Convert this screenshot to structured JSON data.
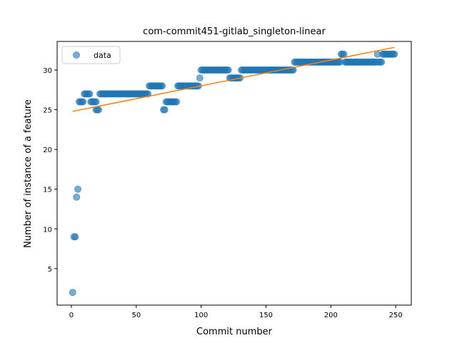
{
  "chart_data": {
    "type": "scatter",
    "title": "com-commit451-gitlab_singleton-linear",
    "xlabel": "Commit number",
    "ylabel": "Number of instance of a feature",
    "xlim": [
      -11,
      262
    ],
    "ylim": [
      0.4,
      33.6
    ],
    "xticks": [
      0,
      50,
      100,
      150,
      200,
      250
    ],
    "yticks": [
      5,
      10,
      15,
      20,
      25,
      30
    ],
    "legend": {
      "position": "top-left",
      "entries": [
        "data"
      ]
    },
    "series": [
      {
        "name": "data",
        "kind": "points",
        "color": "#1f77b4",
        "runs": [
          [
            1,
            1,
            2
          ],
          [
            2,
            3,
            9
          ],
          [
            4,
            4,
            14
          ],
          [
            5,
            5,
            15
          ],
          [
            6,
            9,
            26
          ],
          [
            10,
            14,
            27
          ],
          [
            15,
            19,
            26
          ],
          [
            19,
            21,
            25
          ],
          [
            22,
            59,
            27
          ],
          [
            60,
            70,
            28
          ],
          [
            71,
            72,
            25
          ],
          [
            73,
            81,
            26
          ],
          [
            82,
            98,
            28
          ],
          [
            99,
            99,
            29
          ],
          [
            100,
            121,
            30
          ],
          [
            122,
            130,
            29
          ],
          [
            131,
            171,
            30
          ],
          [
            172,
            207,
            31
          ],
          [
            208,
            210,
            32
          ],
          [
            211,
            235,
            31
          ],
          [
            236,
            236,
            32
          ],
          [
            237,
            239,
            31
          ],
          [
            240,
            249,
            32
          ]
        ]
      },
      {
        "kind": "fit-line",
        "color": "#ff7f0e",
        "x": [
          1,
          249
        ],
        "y": [
          24.8,
          32.85
        ]
      }
    ]
  }
}
